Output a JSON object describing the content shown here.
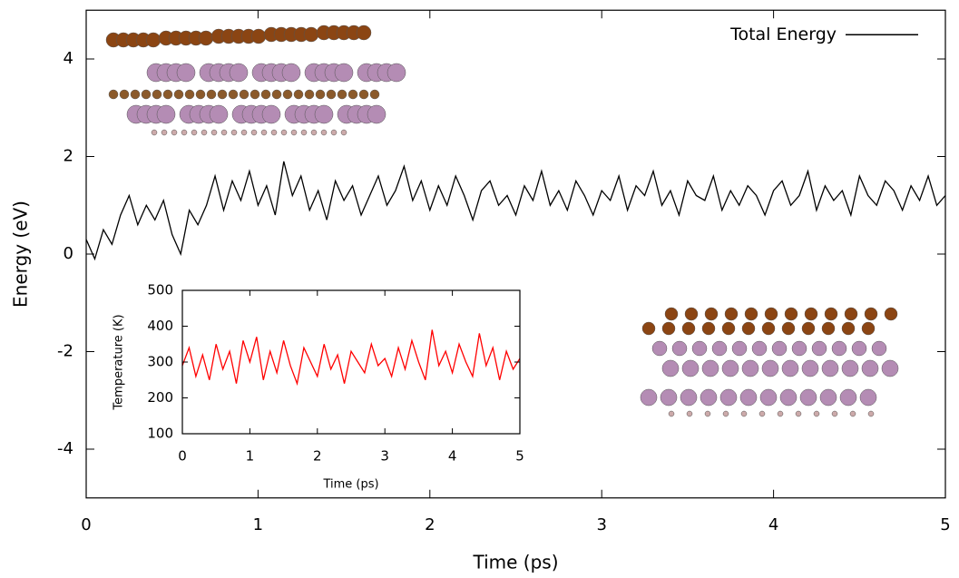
{
  "chart_data": [
    {
      "type": "line",
      "xlabel": "Time (ps)",
      "ylabel": "Energy (eV)",
      "x": [
        0,
        0.05,
        0.1,
        0.15,
        0.2,
        0.25,
        0.3,
        0.35,
        0.4,
        0.45,
        0.5,
        0.55,
        0.6,
        0.65,
        0.7,
        0.75,
        0.8,
        0.85,
        0.9,
        0.95,
        1,
        1.05,
        1.1,
        1.15,
        1.2,
        1.25,
        1.3,
        1.35,
        1.4,
        1.45,
        1.5,
        1.55,
        1.6,
        1.65,
        1.7,
        1.75,
        1.8,
        1.85,
        1.9,
        1.95,
        2,
        2.05,
        2.1,
        2.15,
        2.2,
        2.25,
        2.3,
        2.35,
        2.4,
        2.45,
        2.5,
        2.55,
        2.6,
        2.65,
        2.7,
        2.75,
        2.8,
        2.85,
        2.9,
        2.95,
        3,
        3.05,
        3.1,
        3.15,
        3.2,
        3.25,
        3.3,
        3.35,
        3.4,
        3.45,
        3.5,
        3.55,
        3.6,
        3.65,
        3.7,
        3.75,
        3.8,
        3.85,
        3.9,
        3.95,
        4,
        4.05,
        4.1,
        4.15,
        4.2,
        4.25,
        4.3,
        4.35,
        4.4,
        4.45,
        4.5,
        4.55,
        4.6,
        4.65,
        4.7,
        4.75,
        4.8,
        4.85,
        4.9,
        4.95,
        5
      ],
      "series": [
        {
          "name": "Total Energy",
          "color": "#000000",
          "values": [
            0.3,
            -0.1,
            0.5,
            0.2,
            0.8,
            1.2,
            0.6,
            1.0,
            0.7,
            1.1,
            0.4,
            0.0,
            0.9,
            0.6,
            1.0,
            1.6,
            0.9,
            1.5,
            1.1,
            1.7,
            1.0,
            1.4,
            0.8,
            1.9,
            1.2,
            1.6,
            0.9,
            1.3,
            0.7,
            1.5,
            1.1,
            1.4,
            0.8,
            1.2,
            1.6,
            1.0,
            1.3,
            1.8,
            1.1,
            1.5,
            0.9,
            1.4,
            1.0,
            1.6,
            1.2,
            0.7,
            1.3,
            1.5,
            1.0,
            1.2,
            0.8,
            1.4,
            1.1,
            1.7,
            1.0,
            1.3,
            0.9,
            1.5,
            1.2,
            0.8,
            1.3,
            1.1,
            1.6,
            0.9,
            1.4,
            1.2,
            1.7,
            1.0,
            1.3,
            0.8,
            1.5,
            1.2,
            1.1,
            1.6,
            0.9,
            1.3,
            1.0,
            1.4,
            1.2,
            0.8,
            1.3,
            1.5,
            1.0,
            1.2,
            1.7,
            0.9,
            1.4,
            1.1,
            1.3,
            0.8,
            1.6,
            1.2,
            1.0,
            1.5,
            1.3,
            0.9,
            1.4,
            1.1,
            1.6,
            1.0,
            1.2
          ]
        }
      ],
      "xlim": [
        0,
        5
      ],
      "ylim": [
        -5,
        5
      ],
      "xticks": [
        0,
        1,
        2,
        3,
        4,
        5
      ],
      "yticks": [
        -4,
        -2,
        0,
        2,
        4
      ],
      "legend": "top-right"
    },
    {
      "type": "line",
      "xlabel": "Time (ps)",
      "ylabel": "Temperature (K)",
      "x": [
        0,
        0.1,
        0.2,
        0.3,
        0.4,
        0.5,
        0.6,
        0.7,
        0.8,
        0.9,
        1,
        1.1,
        1.2,
        1.3,
        1.4,
        1.5,
        1.6,
        1.7,
        1.8,
        1.9,
        2,
        2.1,
        2.2,
        2.3,
        2.4,
        2.5,
        2.6,
        2.7,
        2.8,
        2.9,
        3,
        3.1,
        3.2,
        3.3,
        3.4,
        3.5,
        3.6,
        3.7,
        3.8,
        3.9,
        4,
        4.1,
        4.2,
        4.3,
        4.4,
        4.5,
        4.6,
        4.7,
        4.8,
        4.9,
        5
      ],
      "series": [
        {
          "color": "#ff0000",
          "values": [
            290,
            340,
            260,
            320,
            250,
            350,
            280,
            330,
            240,
            360,
            300,
            370,
            250,
            330,
            270,
            360,
            290,
            240,
            340,
            300,
            260,
            350,
            280,
            320,
            240,
            330,
            300,
            270,
            350,
            290,
            310,
            260,
            340,
            280,
            360,
            300,
            250,
            390,
            290,
            330,
            270,
            350,
            300,
            260,
            380,
            290,
            340,
            250,
            330,
            280,
            310
          ]
        }
      ],
      "xlim": [
        0,
        5
      ],
      "ylim": [
        100,
        500
      ],
      "xticks": [
        0,
        1,
        2,
        3,
        4,
        5
      ],
      "yticks": [
        100,
        200,
        300,
        400,
        500
      ]
    }
  ]
}
